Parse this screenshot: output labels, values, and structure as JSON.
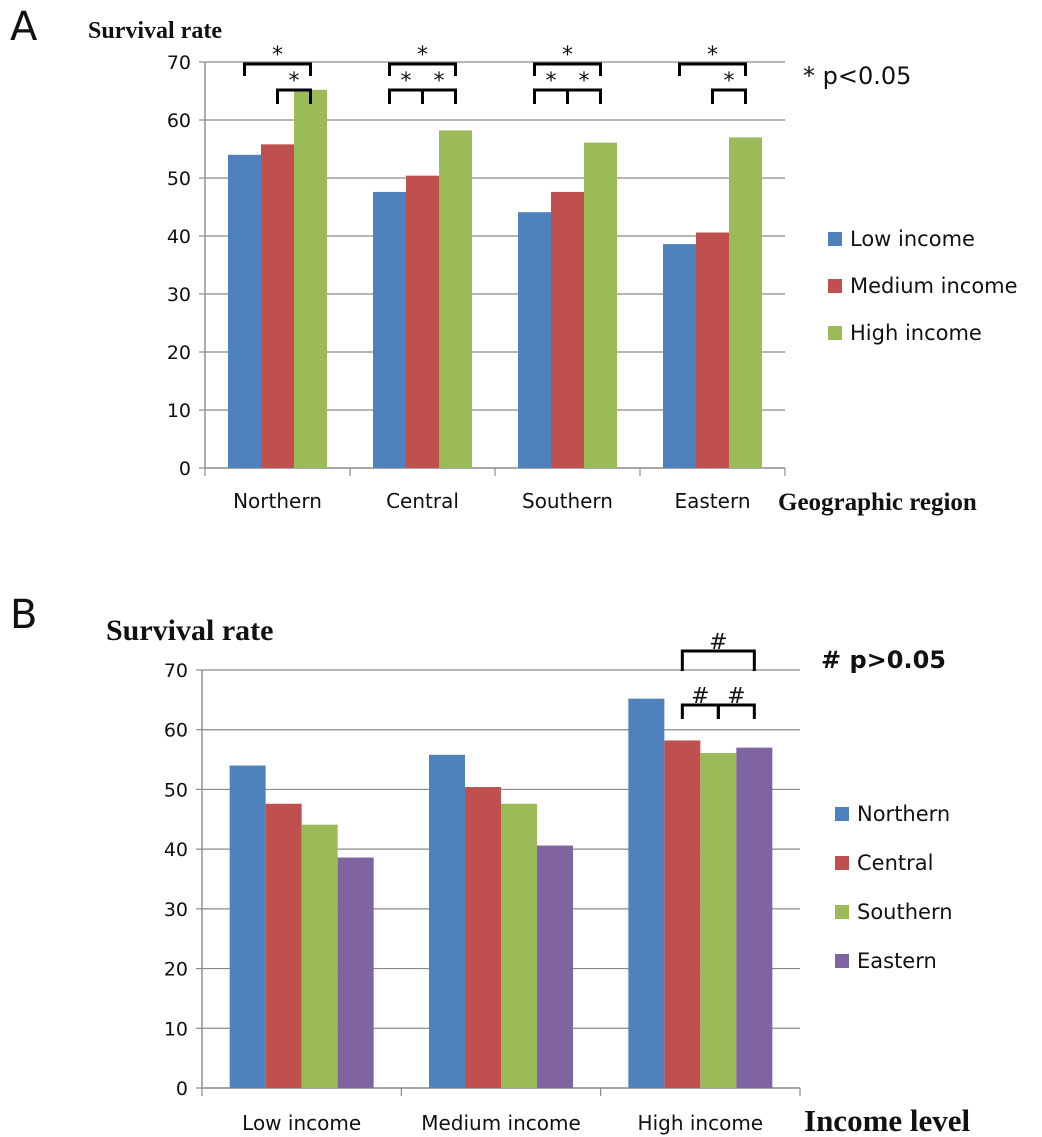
{
  "chart_data": [
    {
      "type": "bar",
      "panel": "A",
      "ylabel": "Survival rate",
      "xlabel": "Geographic region",
      "ylim": [
        0,
        70
      ],
      "yticks": [
        0,
        10,
        20,
        30,
        40,
        50,
        60,
        70
      ],
      "grid": true,
      "legend_position": "right",
      "categories": [
        "Northern",
        "Central",
        "Southern",
        "Eastern"
      ],
      "series": [
        {
          "name": "Low income",
          "color": "#4f81bd",
          "values": [
            54.0,
            47.6,
            44.1,
            38.6
          ]
        },
        {
          "name": "Medium income",
          "color": "#c0504d",
          "values": [
            55.8,
            50.4,
            47.6,
            40.6
          ]
        },
        {
          "name": "High income",
          "color": "#9bbb59",
          "values": [
            65.2,
            58.2,
            56.1,
            57.0
          ]
        }
      ],
      "note": "* p<0.05",
      "significance": [
        {
          "category": 0,
          "from": 0,
          "to": 2,
          "label": "*"
        },
        {
          "category": 0,
          "from": 1,
          "to": 2,
          "label": "*"
        },
        {
          "category": 1,
          "from": 0,
          "to": 2,
          "label": "*"
        },
        {
          "category": 1,
          "from": 0,
          "to": 1,
          "label": "*"
        },
        {
          "category": 1,
          "from": 1,
          "to": 2,
          "label": "*"
        },
        {
          "category": 2,
          "from": 0,
          "to": 2,
          "label": "*"
        },
        {
          "category": 2,
          "from": 0,
          "to": 1,
          "label": "*"
        },
        {
          "category": 2,
          "from": 1,
          "to": 2,
          "label": "*"
        },
        {
          "category": 3,
          "from": 0,
          "to": 2,
          "label": "*"
        },
        {
          "category": 3,
          "from": 1,
          "to": 2,
          "label": "*"
        }
      ]
    },
    {
      "type": "bar",
      "panel": "B",
      "ylabel": "Survival rate",
      "xlabel": "Income level",
      "ylim": [
        0,
        70
      ],
      "yticks": [
        0,
        10,
        20,
        30,
        40,
        50,
        60,
        70
      ],
      "grid": true,
      "legend_position": "right",
      "categories": [
        "Low income",
        "Medium income",
        "High income"
      ],
      "series": [
        {
          "name": "Northern",
          "color": "#4f81bd",
          "values": [
            54.0,
            55.8,
            65.2
          ]
        },
        {
          "name": "Central",
          "color": "#c0504d",
          "values": [
            47.6,
            50.4,
            58.2
          ]
        },
        {
          "name": "Southern",
          "color": "#9bbb59",
          "values": [
            44.1,
            47.6,
            56.1
          ]
        },
        {
          "name": "Eastern",
          "color": "#8064a2",
          "values": [
            38.6,
            40.6,
            57.0
          ]
        }
      ],
      "note": "# p>0.05",
      "significance": [
        {
          "category": 2,
          "from": 1,
          "to": 3,
          "label": "#"
        },
        {
          "category": 2,
          "from": 1,
          "to": 2,
          "label": "#"
        },
        {
          "category": 2,
          "from": 2,
          "to": 3,
          "label": "#"
        }
      ]
    }
  ]
}
